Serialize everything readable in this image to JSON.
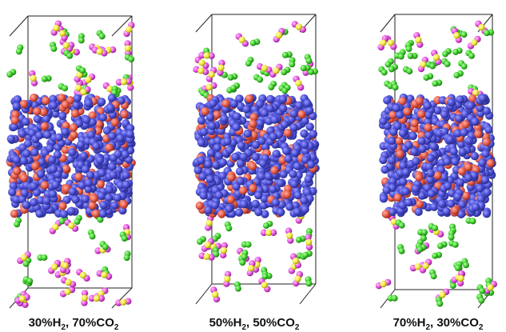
{
  "panels": [
    {
      "label_parts": [
        "30%H",
        "2",
        ", 70%CO",
        "2"
      ]
    },
    {
      "label_parts": [
        "50%H",
        "2",
        ", 50%CO",
        "2"
      ]
    },
    {
      "label_parts": [
        "70%H",
        "2",
        ", 30%CO",
        "2"
      ]
    }
  ]
}
